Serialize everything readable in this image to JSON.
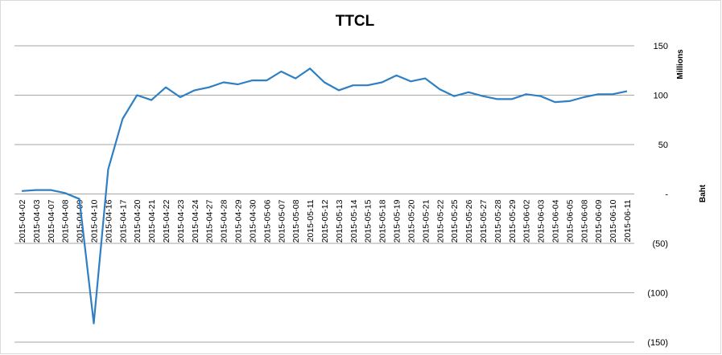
{
  "chart_data": {
    "type": "line",
    "title": "TTCL",
    "y_axis_label": "Baht",
    "y_axis_unit": "Millions",
    "categories": [
      "2015-04-02",
      "2015-04-03",
      "2015-04-07",
      "2015-04-08",
      "2015-04-09",
      "2015-04-10",
      "2015-04-16",
      "2015-04-17",
      "2015-04-20",
      "2015-04-21",
      "2015-04-22",
      "2015-04-23",
      "2015-04-24",
      "2015-04-27",
      "2015-04-28",
      "2015-04-29",
      "2015-04-30",
      "2015-05-06",
      "2015-05-07",
      "2015-05-08",
      "2015-05-11",
      "2015-05-12",
      "2015-05-13",
      "2015-05-14",
      "2015-05-15",
      "2015-05-18",
      "2015-05-19",
      "2015-05-20",
      "2015-05-21",
      "2015-05-22",
      "2015-05-25",
      "2015-05-26",
      "2015-05-27",
      "2015-05-28",
      "2015-05-29",
      "2015-06-02",
      "2015-06-03",
      "2015-06-04",
      "2015-06-05",
      "2015-06-08",
      "2015-06-09",
      "2015-06-10",
      "2015-06-11"
    ],
    "series": [
      {
        "color": "#2e7fc4",
        "values": [
          3,
          4,
          4,
          1,
          -5,
          -131,
          25,
          76,
          100,
          95,
          108,
          98,
          105,
          108,
          113,
          111,
          115,
          115,
          124,
          117,
          127,
          113,
          105,
          110,
          110,
          113,
          120,
          114,
          117,
          106,
          99,
          103,
          99,
          96,
          96,
          101,
          99,
          93,
          94,
          98,
          101,
          101,
          104
        ]
      }
    ],
    "ylim": [
      -150,
      150
    ],
    "yticks": [
      {
        "value": -150,
        "label": "(150)"
      },
      {
        "value": -100,
        "label": "(100)"
      },
      {
        "value": -50,
        "label": "(50)"
      },
      {
        "value": 0,
        "label": "-"
      },
      50,
      100,
      150
    ],
    "grid": true
  }
}
